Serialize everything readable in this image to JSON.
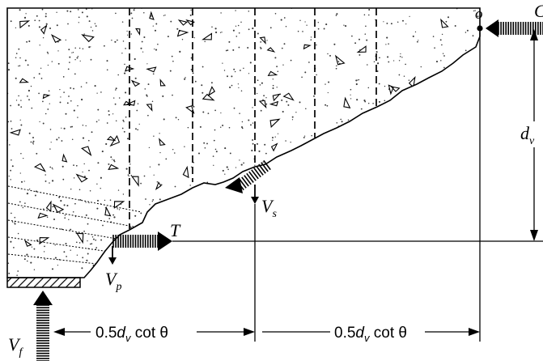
{
  "labels": {
    "point_o": "o",
    "force_c": "C",
    "force_t": "T",
    "dv_main": "d",
    "dv_sub": "v",
    "vs_main": "V",
    "vs_sub": "s",
    "vp_main": "V",
    "vp_sub": "p",
    "vf_main": "V",
    "vf_sub": "f"
  },
  "dimensions": {
    "left": {
      "pre": "0.5",
      "var": "d",
      "sub": "v",
      "post": " cot θ"
    },
    "right": {
      "pre": "0.5",
      "var": "d",
      "sub": "v",
      "post": " cot θ"
    }
  },
  "colors": {
    "line": "#000000",
    "concrete_dot": "#3a3a3a",
    "hatch": "#000000"
  }
}
